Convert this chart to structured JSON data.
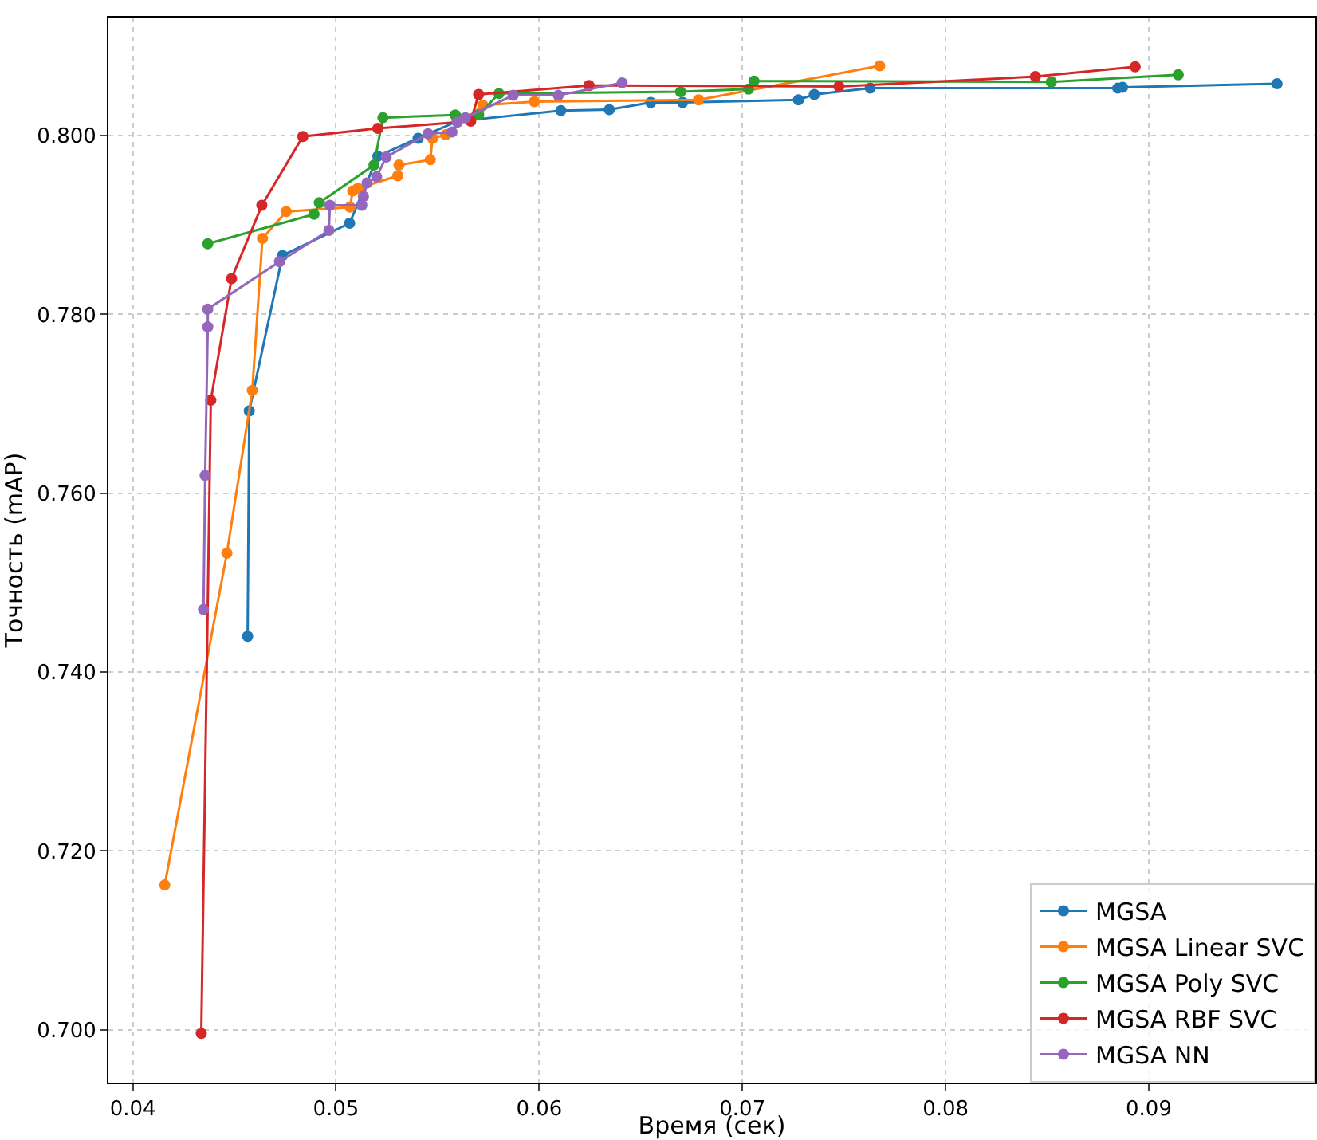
{
  "chart_data": {
    "type": "line",
    "xlabel": "Время (сек)",
    "ylabel": "Точность (mAP)",
    "xlim": [
      0.0388,
      0.0982
    ],
    "ylim": [
      0.6941,
      0.8132
    ],
    "xticks": [
      0.04,
      0.05,
      0.06,
      0.07,
      0.08,
      0.09
    ],
    "yticks": [
      {
        "value": 0.7,
        "label": "0.700"
      },
      {
        "value": 0.72,
        "label": "0.720"
      },
      {
        "value": 0.74,
        "label": "0.740"
      },
      {
        "value": 0.76,
        "label": "0.760"
      },
      {
        "value": 0.78,
        "label": "0.780"
      },
      {
        "value": 0.8,
        "label": "0.800"
      }
    ],
    "grid": true,
    "legend": "bottom right",
    "marker": "circle",
    "line_style": "solid",
    "series": [
      {
        "name": "MGSA",
        "color": "#1f77b4",
        "x": [
          0.04565,
          0.04573,
          0.04737,
          0.05067,
          0.05206,
          0.05404,
          0.05597,
          0.06107,
          0.06345,
          0.06549,
          0.06706,
          0.07276,
          0.07354,
          0.07629,
          0.08847,
          0.08871,
          0.09631
        ],
        "values": [
          0.744,
          0.7692,
          0.7866,
          0.7902,
          0.7977,
          0.7997,
          0.8016,
          0.8028,
          0.8029,
          0.8037,
          0.8037,
          0.804,
          0.8046,
          0.8053,
          0.8053,
          0.8054,
          0.8058
        ]
      },
      {
        "name": "MGSA Linear SVC",
        "color": "#ff7f0e",
        "x": [
          0.04157,
          0.04463,
          0.04588,
          0.04638,
          0.04755,
          0.05069,
          0.05082,
          0.05108,
          0.05304,
          0.0531,
          0.05464,
          0.05475,
          0.0554,
          0.05723,
          0.05976,
          0.06784,
          0.07676
        ],
        "values": [
          0.7162,
          0.7533,
          0.7715,
          0.7885,
          0.7915,
          0.792,
          0.7938,
          0.7941,
          0.7955,
          0.7967,
          0.7973,
          0.7997,
          0.8001,
          0.8034,
          0.8038,
          0.804,
          0.8078
        ]
      },
      {
        "name": "MGSA Poly SVC",
        "color": "#2ca02c",
        "x": [
          0.04369,
          0.04892,
          0.04918,
          0.05187,
          0.05231,
          0.05587,
          0.05702,
          0.05802,
          0.06696,
          0.0703,
          0.07057,
          0.0852,
          0.09145
        ],
        "values": [
          0.7879,
          0.7912,
          0.7925,
          0.7967,
          0.802,
          0.8023,
          0.8023,
          0.8047,
          0.8049,
          0.8052,
          0.8061,
          0.806,
          0.8068
        ]
      },
      {
        "name": "MGSA RBF SVC",
        "color": "#d62728",
        "x": [
          0.04337,
          0.04384,
          0.04486,
          0.04635,
          0.04837,
          0.05206,
          0.05663,
          0.05702,
          0.06245,
          0.07475,
          0.08442,
          0.08933
        ],
        "values": [
          0.6996,
          0.7704,
          0.784,
          0.7922,
          0.7999,
          0.8008,
          0.8016,
          0.8046,
          0.8056,
          0.8055,
          0.8066,
          0.8077
        ]
      },
      {
        "name": "MGSA NN",
        "color": "#9467bd",
        "x": [
          0.04348,
          0.04356,
          0.04369,
          0.04369,
          0.04722,
          0.04965,
          0.0497,
          0.05127,
          0.05135,
          0.05153,
          0.052,
          0.05247,
          0.05453,
          0.05571,
          0.05597,
          0.05637,
          0.05872,
          0.06094,
          0.06408
        ],
        "values": [
          0.747,
          0.762,
          0.7786,
          0.7806,
          0.7859,
          0.7894,
          0.7922,
          0.7922,
          0.7932,
          0.7947,
          0.7954,
          0.7976,
          0.8002,
          0.8004,
          0.8015,
          0.802,
          0.8045,
          0.8045,
          0.8059
        ]
      }
    ]
  }
}
